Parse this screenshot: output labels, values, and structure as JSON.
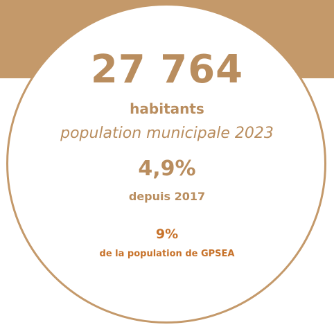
{
  "colors": {
    "brand_tan": "#c4996a",
    "text_brown": "#b98d5e",
    "accent_orange": "#c7722a",
    "background": "#ffffff"
  },
  "population": {
    "value": "27 764",
    "unit": "habitants",
    "caption": "population municipale 2023"
  },
  "growth": {
    "value": "4,9%",
    "caption": "depuis 2017"
  },
  "share": {
    "value": "9%",
    "caption": "de la population de GPSEA"
  }
}
